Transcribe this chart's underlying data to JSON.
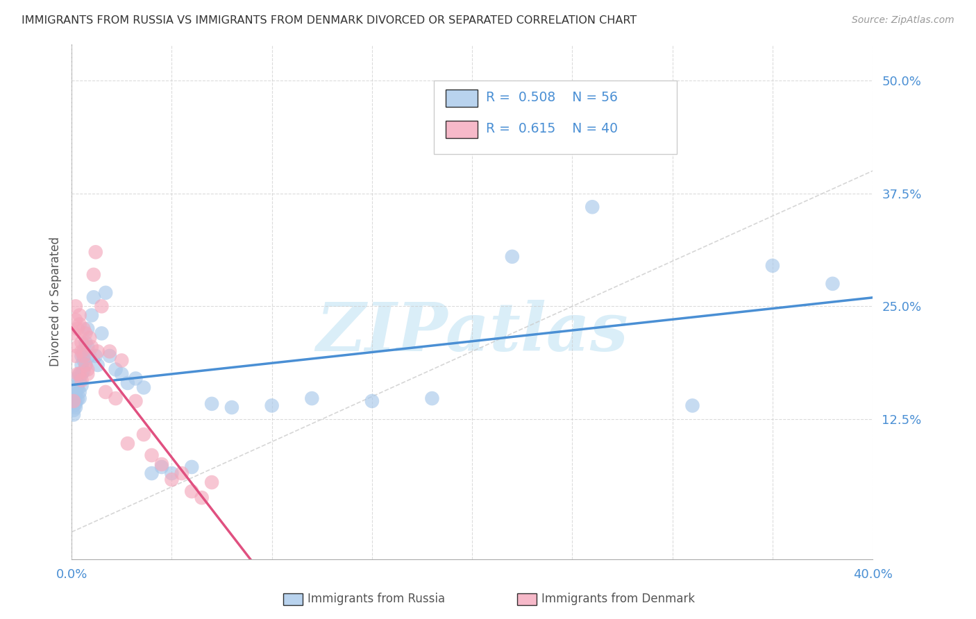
{
  "title": "IMMIGRANTS FROM RUSSIA VS IMMIGRANTS FROM DENMARK DIVORCED OR SEPARATED CORRELATION CHART",
  "source": "Source: ZipAtlas.com",
  "ylabel": "Divorced or Separated",
  "xlim": [
    0.0,
    0.4
  ],
  "ylim": [
    -0.03,
    0.54
  ],
  "yticks": [
    0.125,
    0.25,
    0.375,
    0.5
  ],
  "ytick_labels": [
    "12.5%",
    "25.0%",
    "37.5%",
    "50.0%"
  ],
  "scatter_color_russia": "#a8c8ea",
  "scatter_color_denmark": "#f4a8bc",
  "line_color_russia": "#4a8fd4",
  "line_color_denmark": "#e05080",
  "watermark_color": "#daeef8",
  "background_color": "#ffffff",
  "grid_color": "#cccccc",
  "title_color": "#333333",
  "tick_label_color": "#4a8fd4",
  "russia_x": [
    0.001,
    0.001,
    0.001,
    0.001,
    0.002,
    0.002,
    0.002,
    0.002,
    0.002,
    0.003,
    0.003,
    0.003,
    0.003,
    0.004,
    0.004,
    0.004,
    0.004,
    0.005,
    0.005,
    0.005,
    0.005,
    0.006,
    0.006,
    0.006,
    0.007,
    0.007,
    0.008,
    0.008,
    0.009,
    0.01,
    0.011,
    0.012,
    0.013,
    0.015,
    0.017,
    0.019,
    0.022,
    0.025,
    0.028,
    0.032,
    0.036,
    0.04,
    0.045,
    0.05,
    0.06,
    0.07,
    0.08,
    0.1,
    0.12,
    0.15,
    0.18,
    0.22,
    0.26,
    0.31,
    0.35,
    0.38
  ],
  "russia_y": [
    0.135,
    0.14,
    0.148,
    0.13,
    0.145,
    0.155,
    0.142,
    0.138,
    0.152,
    0.158,
    0.162,
    0.147,
    0.17,
    0.155,
    0.168,
    0.148,
    0.175,
    0.175,
    0.185,
    0.162,
    0.195,
    0.19,
    0.2,
    0.178,
    0.21,
    0.185,
    0.205,
    0.225,
    0.195,
    0.24,
    0.26,
    0.195,
    0.185,
    0.22,
    0.265,
    0.195,
    0.18,
    0.175,
    0.165,
    0.17,
    0.16,
    0.065,
    0.072,
    0.065,
    0.072,
    0.142,
    0.138,
    0.14,
    0.148,
    0.145,
    0.148,
    0.305,
    0.36,
    0.14,
    0.295,
    0.275
  ],
  "denmark_x": [
    0.001,
    0.001,
    0.002,
    0.002,
    0.002,
    0.003,
    0.003,
    0.003,
    0.004,
    0.004,
    0.004,
    0.005,
    0.005,
    0.005,
    0.006,
    0.006,
    0.007,
    0.007,
    0.008,
    0.008,
    0.009,
    0.01,
    0.011,
    0.012,
    0.013,
    0.015,
    0.017,
    0.019,
    0.022,
    0.025,
    0.028,
    0.032,
    0.036,
    0.04,
    0.045,
    0.05,
    0.055,
    0.06,
    0.065,
    0.07
  ],
  "denmark_y": [
    0.145,
    0.22,
    0.235,
    0.25,
    0.195,
    0.205,
    0.225,
    0.175,
    0.23,
    0.175,
    0.24,
    0.21,
    0.168,
    0.2,
    0.225,
    0.195,
    0.185,
    0.22,
    0.18,
    0.175,
    0.215,
    0.205,
    0.285,
    0.31,
    0.2,
    0.25,
    0.155,
    0.2,
    0.148,
    0.19,
    0.098,
    0.145,
    0.108,
    0.085,
    0.075,
    0.058,
    0.065,
    0.045,
    0.038,
    0.055
  ]
}
